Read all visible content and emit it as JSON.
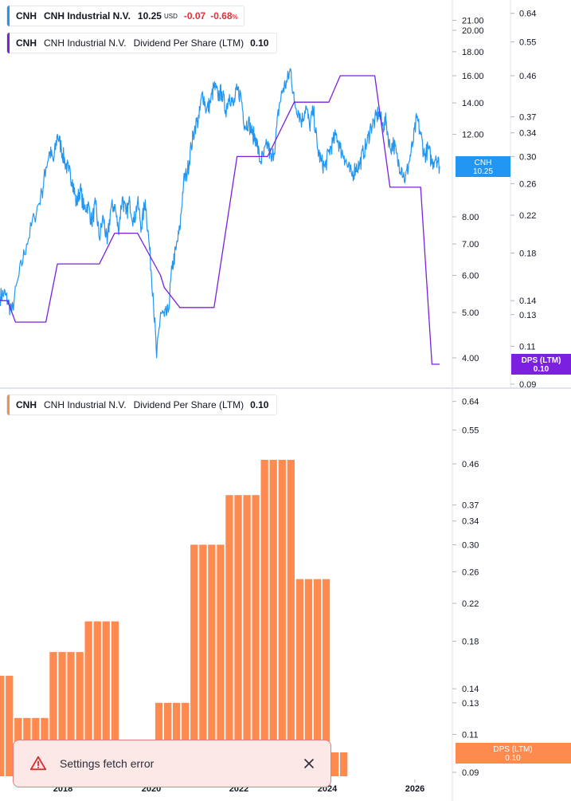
{
  "legends": {
    "price": {
      "symbol": "CNH",
      "company": "CNH Industrial N.V.",
      "price": "10.25",
      "currency": "USD",
      "change": "-0.07",
      "change_pct": "-0.68",
      "pct_sign": "%",
      "color": "#2196f3"
    },
    "dps_top": {
      "symbol": "CNH",
      "company": "CNH Industrial N.V.",
      "metric": "Dividend Per Share (LTM)",
      "value": "0.10",
      "color": "#7b1fe0"
    },
    "dps_bottom": {
      "symbol": "CNH",
      "company": "CNH Industrial N.V.",
      "metric": "Dividend Per Share (LTM)",
      "value": "0.10",
      "color": "#ff8a50"
    }
  },
  "badges": {
    "price": {
      "line1": "CNH",
      "line2": "10.25"
    },
    "dps_top": {
      "line1": "DPS (LTM)",
      "line2": "0.10"
    },
    "dps_bottom": {
      "line1": "DPS (LTM)",
      "line2": "0.10"
    }
  },
  "toast": {
    "message": "Settings fetch error",
    "icon": "warning-triangle-icon",
    "close_icon": "close-icon"
  },
  "chart_data": [
    {
      "type": "line",
      "scale": "log",
      "series": [
        {
          "name": "CNH",
          "color": "#2196f3",
          "points": [
            [
              "2016-10",
              5.4
            ],
            [
              "2016-11",
              5.5
            ],
            [
              "2016-12",
              5.3
            ],
            [
              "2017-01",
              5.0
            ],
            [
              "2017-03",
              6.0
            ],
            [
              "2017-05",
              7.0
            ],
            [
              "2017-07",
              8.0
            ],
            [
              "2017-09",
              9.0
            ],
            [
              "2017-10",
              10.2
            ],
            [
              "2017-11",
              11.0
            ],
            [
              "2017-12",
              10.5
            ],
            [
              "2018-01",
              12.0
            ],
            [
              "2018-02",
              11.2
            ],
            [
              "2018-03",
              10.5
            ],
            [
              "2018-04",
              10.0
            ],
            [
              "2018-05",
              9.6
            ],
            [
              "2018-06",
              8.5
            ],
            [
              "2018-07",
              9.2
            ],
            [
              "2018-08",
              8.3
            ],
            [
              "2018-09",
              8.5
            ],
            [
              "2018-10",
              7.8
            ],
            [
              "2018-11",
              8.5
            ],
            [
              "2018-12",
              7.2
            ],
            [
              "2019-01",
              8.0
            ],
            [
              "2019-02",
              7.0
            ],
            [
              "2019-03",
              8.3
            ],
            [
              "2019-04",
              8.5
            ],
            [
              "2019-05",
              7.5
            ],
            [
              "2019-06",
              8.8
            ],
            [
              "2019-07",
              8.1
            ],
            [
              "2019-08",
              8.6
            ],
            [
              "2019-09",
              7.8
            ],
            [
              "2019-10",
              8.6
            ],
            [
              "2019-11",
              7.6
            ],
            [
              "2019-12",
              8.7
            ],
            [
              "2020-01",
              7.0
            ],
            [
              "2020-02",
              5.5
            ],
            [
              "2020-03",
              4.0
            ],
            [
              "2020-04",
              5.0
            ],
            [
              "2020-05",
              4.9
            ],
            [
              "2020-06",
              5.0
            ],
            [
              "2020-07",
              6.2
            ],
            [
              "2020-08",
              6.8
            ],
            [
              "2020-09",
              7.5
            ],
            [
              "2020-10",
              9.5
            ],
            [
              "2020-11",
              10.0
            ],
            [
              "2020-12",
              11.3
            ],
            [
              "2021-01",
              12.5
            ],
            [
              "2021-02",
              13.0
            ],
            [
              "2021-03",
              14.8
            ],
            [
              "2021-04",
              13.5
            ],
            [
              "2021-05",
              14.0
            ],
            [
              "2021-06",
              15.2
            ],
            [
              "2021-07",
              14.5
            ],
            [
              "2021-08",
              14.8
            ],
            [
              "2021-09",
              13.5
            ],
            [
              "2021-10",
              14.6
            ],
            [
              "2021-11",
              13.8
            ],
            [
              "2021-12",
              14.9
            ],
            [
              "2022-01",
              14.5
            ],
            [
              "2022-02",
              12.5
            ],
            [
              "2022-03",
              12.8
            ],
            [
              "2022-04",
              12.0
            ],
            [
              "2022-05",
              11.8
            ],
            [
              "2022-06",
              10.5
            ],
            [
              "2022-07",
              10.8
            ],
            [
              "2022-08",
              11.5
            ],
            [
              "2022-09",
              10.5
            ],
            [
              "2022-10",
              11.5
            ],
            [
              "2022-11",
              13.8
            ],
            [
              "2022-12",
              15.0
            ],
            [
              "2023-01",
              15.5
            ],
            [
              "2023-02",
              16.5
            ],
            [
              "2023-03",
              14.0
            ],
            [
              "2023-04",
              13.5
            ],
            [
              "2023-05",
              12.8
            ],
            [
              "2023-06",
              13.8
            ],
            [
              "2023-07",
              12.5
            ],
            [
              "2023-08",
              13.5
            ],
            [
              "2023-09",
              11.2
            ],
            [
              "2023-10",
              10.5
            ],
            [
              "2023-11",
              10.2
            ],
            [
              "2023-12",
              11.0
            ],
            [
              "2024-01",
              11.5
            ],
            [
              "2024-02",
              12.0
            ],
            [
              "2024-03",
              11.2
            ],
            [
              "2024-04",
              10.8
            ],
            [
              "2024-05",
              10.2
            ],
            [
              "2024-06",
              9.8
            ],
            [
              "2024-07",
              10.2
            ],
            [
              "2024-08",
              10.3
            ],
            [
              "2024-09",
              11.0
            ],
            [
              "2024-10",
              11.5
            ],
            [
              "2024-11",
              12.5
            ],
            [
              "2024-12",
              12.8
            ],
            [
              "2025-01",
              13.4
            ],
            [
              "2025-02",
              12.5
            ],
            [
              "2025-03",
              12.8
            ],
            [
              "2025-04",
              11.2
            ],
            [
              "2025-05",
              11.5
            ],
            [
              "2025-06",
              10.5
            ],
            [
              "2025-07",
              10.2
            ],
            [
              "2025-08",
              9.6
            ],
            [
              "2025-09",
              10.5
            ],
            [
              "2025-10",
              11.5
            ],
            [
              "2025-11",
              13.0
            ],
            [
              "2025-12",
              12.0
            ],
            [
              "2026-01",
              10.8
            ],
            [
              "2026-02",
              11.2
            ],
            [
              "2026-03",
              10.4
            ],
            [
              "2026-04",
              10.8
            ],
            [
              "2026-05",
              10.25
            ]
          ]
        },
        {
          "name": "Dividend Per Share (LTM)",
          "color": "#7b1fe0",
          "axis": "right",
          "points": [
            [
              "2016-10",
              0.14
            ],
            [
              "2016-12",
              0.14
            ],
            [
              "2017-02",
              0.125
            ],
            [
              "2017-10",
              0.125
            ],
            [
              "2018-01",
              0.17
            ],
            [
              "2018-12",
              0.17
            ],
            [
              "2019-04",
              0.2
            ],
            [
              "2019-10",
              0.2
            ],
            [
              "2020-04",
              0.16
            ],
            [
              "2020-05",
              0.15
            ],
            [
              "2020-09",
              0.135
            ],
            [
              "2021-06",
              0.135
            ],
            [
              "2021-12",
              0.3
            ],
            [
              "2022-08",
              0.3
            ],
            [
              "2023-03",
              0.4
            ],
            [
              "2023-12",
              0.4
            ],
            [
              "2024-03",
              0.46
            ],
            [
              "2024-12",
              0.46
            ],
            [
              "2025-04",
              0.255
            ],
            [
              "2025-12",
              0.255
            ],
            [
              "2026-03",
              0.1
            ],
            [
              "2026-05",
              0.1
            ]
          ]
        }
      ],
      "left_axis_ticks": [
        4.0,
        5.0,
        6.0,
        7.0,
        8.0,
        12.0,
        14.0,
        16.0,
        18.0,
        20.0,
        21.0
      ],
      "right_axis_ticks": [
        0.09,
        0.11,
        0.13,
        0.14,
        0.18,
        0.22,
        0.26,
        0.3,
        0.34,
        0.37,
        0.46,
        0.55,
        0.64
      ]
    },
    {
      "type": "bar",
      "scale": "log",
      "series": [
        {
          "name": "Dividend Per Share (LTM)",
          "color": "#ff8a50",
          "values": [
            0.15,
            0.15,
            0.12,
            0.12,
            0.12,
            0.12,
            0.17,
            0.17,
            0.17,
            0.17,
            0.2,
            0.2,
            0.2,
            0.2,
            0.1,
            0.1,
            0.1,
            0.1,
            0.13,
            0.13,
            0.13,
            0.13,
            0.3,
            0.3,
            0.3,
            0.3,
            0.39,
            0.39,
            0.39,
            0.39,
            0.47,
            0.47,
            0.47,
            0.47,
            0.25,
            0.25,
            0.25,
            0.25,
            0.1,
            0.1
          ]
        }
      ],
      "x_tick_labels": [
        "2018",
        "2020",
        "2022",
        "2024",
        "2026"
      ],
      "right_axis_ticks": [
        0.09,
        0.11,
        0.13,
        0.14,
        0.18,
        0.22,
        0.26,
        0.3,
        0.34,
        0.37,
        0.46,
        0.55,
        0.64
      ]
    }
  ]
}
